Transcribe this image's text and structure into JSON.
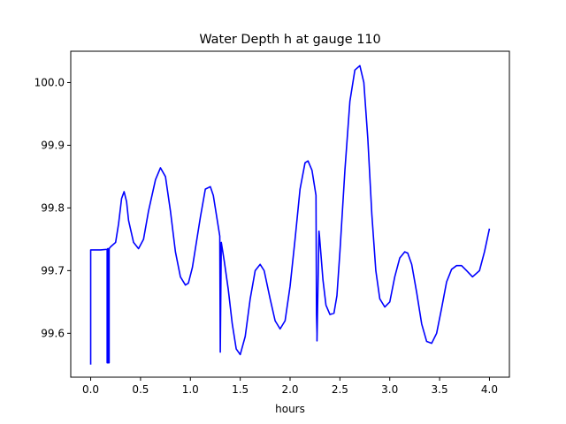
{
  "chart_data": {
    "type": "line",
    "title": "Water Depth h at gauge 110",
    "xlabel": "hours",
    "ylabel": "",
    "xlim": [
      -0.2,
      4.2
    ],
    "ylim": [
      99.53,
      100.05
    ],
    "xticks": [
      0.0,
      0.5,
      1.0,
      1.5,
      2.0,
      2.5,
      3.0,
      3.5,
      4.0
    ],
    "xtick_labels": [
      "0.0",
      "0.5",
      "1.0",
      "1.5",
      "2.0",
      "2.5",
      "3.0",
      "3.5",
      "4.0"
    ],
    "yticks": [
      99.6,
      99.7,
      99.8,
      99.9,
      100.0
    ],
    "ytick_labels": [
      "99.6",
      "99.7",
      "99.8",
      "99.9",
      "100.0"
    ],
    "grid": false,
    "series": [
      {
        "color": "#0000ff",
        "x": [
          0.0,
          0.0,
          0.05,
          0.1,
          0.165,
          0.165,
          0.17,
          0.17,
          0.18,
          0.18,
          0.185,
          0.185,
          0.2,
          0.25,
          0.28,
          0.31,
          0.335,
          0.36,
          0.38,
          0.43,
          0.48,
          0.53,
          0.58,
          0.65,
          0.7,
          0.75,
          0.8,
          0.85,
          0.9,
          0.95,
          0.98,
          1.02,
          1.1,
          1.15,
          1.2,
          1.23,
          1.26,
          1.29,
          1.295,
          1.3,
          1.3,
          1.31,
          1.31,
          1.34,
          1.38,
          1.42,
          1.46,
          1.5,
          1.55,
          1.6,
          1.65,
          1.7,
          1.74,
          1.8,
          1.85,
          1.9,
          1.95,
          2.0,
          2.05,
          2.1,
          2.15,
          2.18,
          2.22,
          2.26,
          2.265,
          2.27,
          2.27,
          2.29,
          2.295,
          2.3,
          2.33,
          2.36,
          2.4,
          2.44,
          2.47,
          2.5,
          2.55,
          2.6,
          2.65,
          2.7,
          2.74,
          2.78,
          2.82,
          2.86,
          2.9,
          2.95,
          3.0,
          3.05,
          3.1,
          3.15,
          3.18,
          3.22,
          3.27,
          3.32,
          3.37,
          3.42,
          3.47,
          3.52,
          3.57,
          3.62,
          3.67,
          3.72,
          3.77,
          3.83,
          3.9,
          3.95,
          4.0
        ],
        "y": [
          99.55,
          99.733,
          99.733,
          99.733,
          99.734,
          99.553,
          99.553,
          99.735,
          99.735,
          99.553,
          99.553,
          99.735,
          99.738,
          99.745,
          99.775,
          99.815,
          99.826,
          99.81,
          99.78,
          99.745,
          99.735,
          99.75,
          99.795,
          99.845,
          99.864,
          99.85,
          99.795,
          99.73,
          99.69,
          99.677,
          99.68,
          99.705,
          99.785,
          99.83,
          99.834,
          99.82,
          99.79,
          99.76,
          99.755,
          99.57,
          99.57,
          99.745,
          99.745,
          99.715,
          99.67,
          99.615,
          99.575,
          99.566,
          99.595,
          99.655,
          99.7,
          99.71,
          99.7,
          99.655,
          99.62,
          99.607,
          99.62,
          99.675,
          99.75,
          99.83,
          99.872,
          99.875,
          99.86,
          99.82,
          99.63,
          99.6,
          99.588,
          99.763,
          99.755,
          99.745,
          99.685,
          99.645,
          99.63,
          99.632,
          99.66,
          99.73,
          99.86,
          99.97,
          100.02,
          100.027,
          100.0,
          99.91,
          99.79,
          99.7,
          99.655,
          99.642,
          99.65,
          99.69,
          99.72,
          99.73,
          99.728,
          99.71,
          99.665,
          99.615,
          99.587,
          99.584,
          99.6,
          99.64,
          99.682,
          99.702,
          99.708,
          99.708,
          99.7,
          99.69,
          99.7,
          99.73,
          99.767
        ]
      }
    ]
  }
}
